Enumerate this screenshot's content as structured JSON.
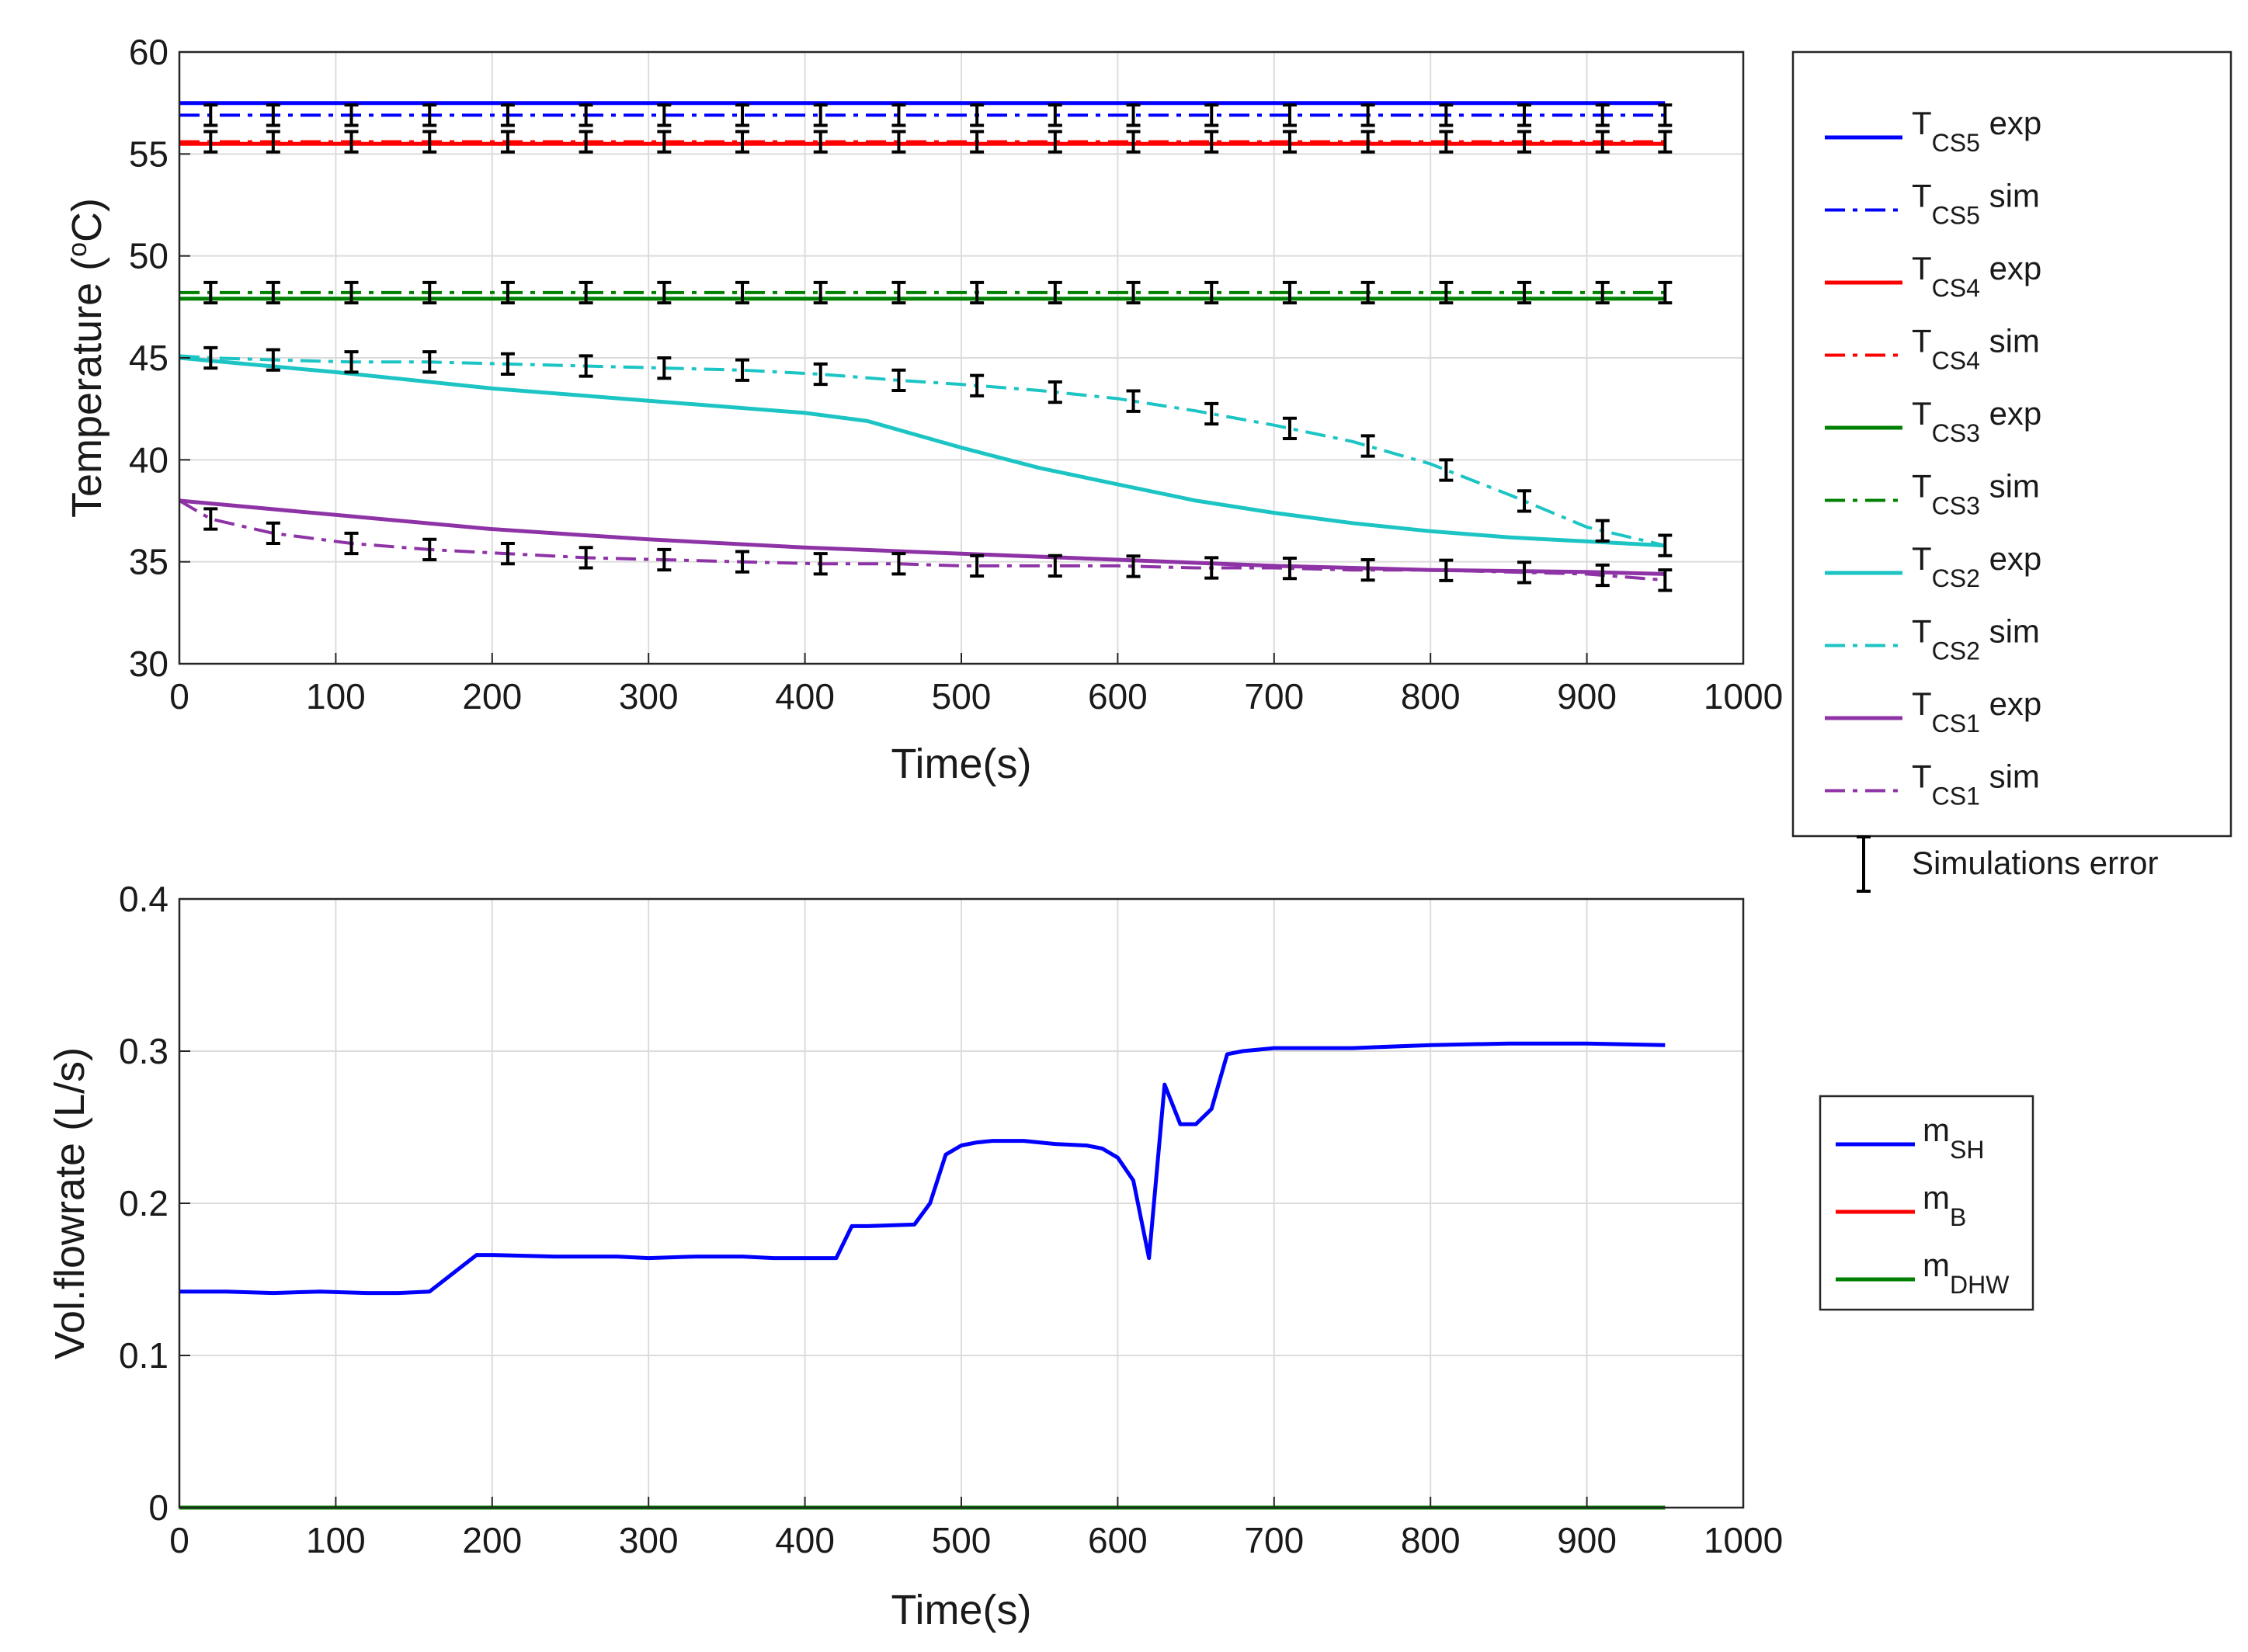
{
  "chart_data": [
    {
      "type": "line",
      "xlabel": "Time(s)",
      "ylabel_main": "Temperature (",
      "ylabel_sup": "o",
      "ylabel_tail": "C)",
      "xlim": [
        0,
        1000
      ],
      "ylim": [
        30,
        60
      ],
      "xticks": [
        0,
        100,
        200,
        300,
        400,
        500,
        600,
        700,
        800,
        900,
        1000
      ],
      "yticks": [
        30,
        35,
        40,
        45,
        50,
        55,
        60
      ],
      "grid": true,
      "legend_position": "outside-right",
      "series": [
        {
          "name": "T_CS5 exp",
          "base": "T",
          "sub": "CS5",
          "suffix": " exp",
          "color": "#0000ff",
          "style": "solid",
          "width": 5,
          "x": [
            0,
            950
          ],
          "y": [
            57.5,
            57.5
          ]
        },
        {
          "name": "T_CS5 sim",
          "base": "T",
          "sub": "CS5",
          "suffix": " sim",
          "color": "#0000ff",
          "style": "dashdot",
          "width": 4,
          "x": [
            0,
            950
          ],
          "y": [
            56.9,
            56.9
          ]
        },
        {
          "name": "T_CS4 exp",
          "base": "T",
          "sub": "CS4",
          "suffix": " exp",
          "color": "#ff0000",
          "style": "solid",
          "width": 5,
          "x": [
            0,
            950
          ],
          "y": [
            55.5,
            55.5
          ]
        },
        {
          "name": "T_CS4 sim",
          "base": "T",
          "sub": "CS4",
          "suffix": " sim",
          "color": "#ff0000",
          "style": "dashdot",
          "width": 4,
          "x": [
            0,
            950
          ],
          "y": [
            55.6,
            55.6
          ]
        },
        {
          "name": "T_CS3 exp",
          "base": "T",
          "sub": "CS3",
          "suffix": " exp",
          "color": "#008000",
          "style": "solid",
          "width": 5,
          "x": [
            0,
            950
          ],
          "y": [
            47.9,
            47.9
          ]
        },
        {
          "name": "T_CS3 sim",
          "base": "T",
          "sub": "CS3",
          "suffix": " sim",
          "color": "#008000",
          "style": "dashdot",
          "width": 4,
          "x": [
            0,
            950
          ],
          "y": [
            48.2,
            48.2
          ]
        },
        {
          "name": "T_CS2 exp",
          "base": "T",
          "sub": "CS2",
          "suffix": " exp",
          "color": "#1cc4c4",
          "style": "solid",
          "width": 5,
          "x": [
            0,
            100,
            200,
            300,
            400,
            440,
            500,
            550,
            600,
            650,
            700,
            750,
            800,
            850,
            900,
            950
          ],
          "y": [
            45.0,
            44.3,
            43.5,
            42.9,
            42.3,
            41.9,
            40.6,
            39.6,
            38.8,
            38.0,
            37.4,
            36.9,
            36.5,
            36.2,
            36.0,
            35.8
          ]
        },
        {
          "name": "T_CS2 sim",
          "base": "T",
          "sub": "CS2",
          "suffix": " sim",
          "color": "#1cc4c4",
          "style": "dashdot",
          "width": 4,
          "x": [
            0,
            20,
            60,
            110,
            160,
            210,
            260,
            310,
            360,
            410,
            460,
            500,
            550,
            600,
            650,
            700,
            750,
            800,
            850,
            900,
            950
          ],
          "y": [
            45.1,
            45.0,
            44.9,
            44.8,
            44.8,
            44.7,
            44.6,
            44.5,
            44.4,
            44.2,
            43.9,
            43.7,
            43.4,
            43.0,
            42.4,
            41.7,
            40.9,
            39.8,
            38.3,
            36.7,
            35.8
          ]
        },
        {
          "name": "T_CS1 exp",
          "base": "T",
          "sub": "CS1",
          "suffix": " exp",
          "color": "#8e33a6",
          "style": "solid",
          "width": 5,
          "x": [
            0,
            100,
            200,
            300,
            400,
            500,
            600,
            700,
            800,
            900,
            950
          ],
          "y": [
            38.0,
            37.3,
            36.6,
            36.1,
            35.7,
            35.4,
            35.1,
            34.8,
            34.6,
            34.5,
            34.4
          ]
        },
        {
          "name": "T_CS1 sim",
          "base": "T",
          "sub": "CS1",
          "suffix": " sim",
          "color": "#8e33a6",
          "style": "dashdot",
          "width": 4,
          "x": [
            0,
            20,
            60,
            110,
            160,
            210,
            260,
            310,
            360,
            410,
            460,
            500,
            550,
            600,
            650,
            700,
            750,
            800,
            850,
            900,
            950
          ],
          "y": [
            38.0,
            37.1,
            36.4,
            35.9,
            35.6,
            35.4,
            35.2,
            35.1,
            35.0,
            34.9,
            34.9,
            34.8,
            34.8,
            34.8,
            34.7,
            34.7,
            34.6,
            34.6,
            34.5,
            34.4,
            34.1
          ]
        }
      ],
      "error_bars": {
        "name": "Simulations error",
        "color": "#000000",
        "x": [
          20,
          60,
          110,
          160,
          210,
          260,
          310,
          360,
          410,
          460,
          510,
          560,
          610,
          660,
          710,
          760,
          810,
          860,
          910,
          950
        ],
        "half_width": 0.5,
        "on_series": [
          "T_CS5 sim",
          "T_CS4 sim",
          "T_CS3 sim",
          "T_CS2 sim",
          "T_CS1 sim"
        ]
      },
      "legend_items": [
        "T_CS5 exp",
        "T_CS5 sim",
        "T_CS4 exp",
        "T_CS4 sim",
        "T_CS3 exp",
        "T_CS3 sim",
        "T_CS2 exp",
        "T_CS2 sim",
        "T_CS1 exp",
        "T_CS1 sim",
        "Simulations error"
      ]
    },
    {
      "type": "line",
      "xlabel": "Time(s)",
      "ylabel": "Vol.flowrate (L/s)",
      "xlim": [
        0,
        1000
      ],
      "ylim": [
        0,
        0.4
      ],
      "xticks": [
        0,
        100,
        200,
        300,
        400,
        500,
        600,
        700,
        800,
        900,
        1000
      ],
      "yticks": [
        0,
        0.1,
        0.2,
        0.3,
        0.4
      ],
      "grid": true,
      "legend_position": "outside-right",
      "series": [
        {
          "name": "m_SH",
          "base": "m",
          "sub": "SH",
          "suffix": "",
          "color": "#0000ff",
          "style": "solid",
          "width": 5,
          "x": [
            0,
            30,
            60,
            90,
            120,
            140,
            160,
            170,
            180,
            190,
            200,
            240,
            280,
            300,
            330,
            360,
            380,
            400,
            420,
            430,
            440,
            470,
            480,
            490,
            500,
            510,
            520,
            540,
            560,
            580,
            590,
            600,
            610,
            620,
            630,
            640,
            650,
            660,
            670,
            680,
            700,
            750,
            800,
            850,
            900,
            950
          ],
          "y": [
            0.142,
            0.142,
            0.141,
            0.142,
            0.141,
            0.141,
            0.142,
            0.15,
            0.158,
            0.166,
            0.166,
            0.165,
            0.165,
            0.164,
            0.165,
            0.165,
            0.164,
            0.164,
            0.164,
            0.185,
            0.185,
            0.186,
            0.2,
            0.232,
            0.238,
            0.24,
            0.241,
            0.241,
            0.239,
            0.238,
            0.236,
            0.23,
            0.215,
            0.164,
            0.278,
            0.252,
            0.252,
            0.262,
            0.298,
            0.3,
            0.302,
            0.302,
            0.304,
            0.305,
            0.305,
            0.304
          ]
        },
        {
          "name": "m_B",
          "base": "m",
          "sub": "B",
          "suffix": "",
          "color": "#ff0000",
          "style": "solid",
          "width": 5,
          "x": [
            0,
            950
          ],
          "y": [
            0,
            0
          ]
        },
        {
          "name": "m_DHW",
          "base": "m",
          "sub": "DHW",
          "suffix": "",
          "color": "#008000",
          "style": "solid",
          "width": 5,
          "x": [
            0,
            950
          ],
          "y": [
            0,
            0
          ]
        }
      ],
      "legend_items": [
        "m_SH",
        "m_B",
        "m_DHW"
      ]
    }
  ]
}
